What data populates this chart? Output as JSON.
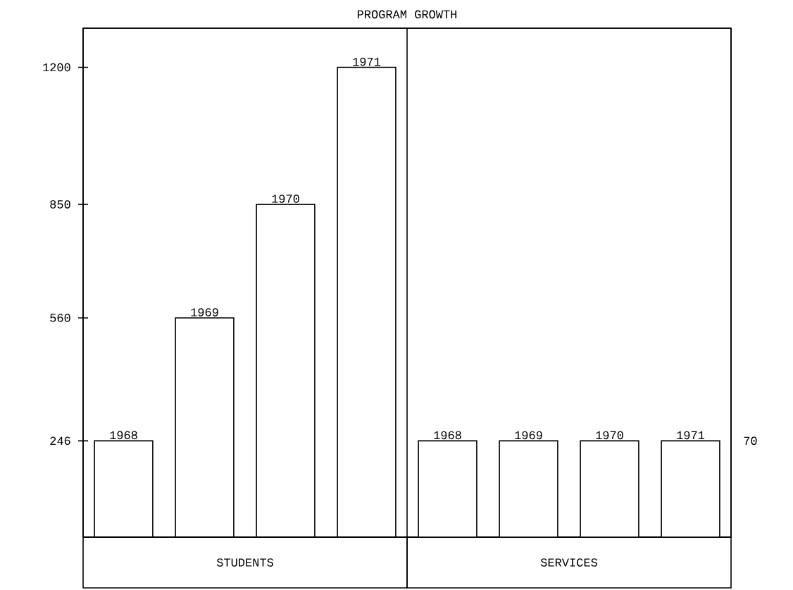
{
  "chart_data": {
    "type": "bar",
    "title": "PROGRAM GROWTH",
    "categories": [
      "1968",
      "1969",
      "1970",
      "1971",
      "1968",
      "1969",
      "1970",
      "1971"
    ],
    "series": [
      {
        "values": [
          246,
          560,
          850,
          1200,
          null,
          null,
          null,
          null
        ]
      },
      {
        "values": [
          null,
          null,
          null,
          null,
          70,
          70,
          70,
          70
        ],
        "axis": "y2"
      }
    ],
    "ylim": [
      0,
      1300
    ],
    "yticks": [
      246,
      560,
      850,
      1200
    ],
    "y2lim": [
      0,
      370
    ],
    "y2ticks": [
      70
    ],
    "annotations": [
      "STUDENTS",
      "SERVICES"
    ],
    "grid": false
  }
}
